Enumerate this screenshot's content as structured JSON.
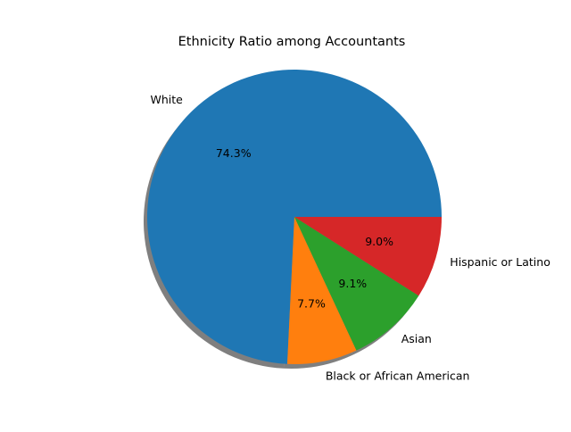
{
  "chart_data": {
    "type": "pie",
    "title": "Ethnicity Ratio among Accountants",
    "shadow": true,
    "start_angle_deg": 0,
    "direction": "counterclockwise",
    "slices": [
      {
        "label": "White",
        "value": 74.3,
        "pct_text": "74.3%",
        "color": "#1f77b4"
      },
      {
        "label": "Black or African American",
        "value": 7.7,
        "pct_text": "7.7%",
        "color": "#ff7f0e"
      },
      {
        "label": "Asian",
        "value": 9.1,
        "pct_text": "9.1%",
        "color": "#2ca02c"
      },
      {
        "label": "Hispanic or Latino",
        "value": 9.0,
        "pct_text": "9.0%",
        "color": "#d62728"
      }
    ]
  }
}
